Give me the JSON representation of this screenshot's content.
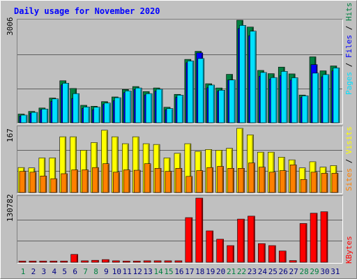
{
  "chart_data": [
    {
      "type": "bar",
      "title": "Daily usage for November 2020",
      "panel": "hits-files-pages",
      "ylabel": [
        "Pages",
        "Files",
        "Hits"
      ],
      "ymax_label": "3006",
      "ylim": [
        0,
        3006
      ],
      "categories": [
        "1",
        "2",
        "3",
        "4",
        "5",
        "6",
        "7",
        "8",
        "9",
        "10",
        "11",
        "12",
        "13",
        "14",
        "15",
        "16",
        "17",
        "18",
        "19",
        "20",
        "21",
        "22",
        "23",
        "24",
        "25",
        "26",
        "27",
        "28",
        "29",
        "30",
        "31"
      ],
      "series": [
        {
          "name": "Hits",
          "color": "#008040",
          "values": [
            255,
            333,
            433,
            725,
            1232,
            1005,
            512,
            484,
            620,
            757,
            975,
            1062,
            915,
            1021,
            455,
            833,
            1858,
            2095,
            1145,
            1020,
            1420,
            3006,
            2806,
            1535,
            1440,
            1632,
            1433,
            813,
            1933,
            1523,
            1666
          ]
        },
        {
          "name": "Files",
          "color": "#0000ff",
          "values": [
            198,
            283,
            384,
            628,
            1112,
            712,
            421,
            384,
            540,
            648,
            885,
            975,
            815,
            925,
            380,
            745,
            1760,
            2050,
            1025,
            925,
            1255,
            2765,
            2554,
            1365,
            1280,
            1380,
            1250,
            745,
            1705,
            1348,
            1520
          ]
        },
        {
          "name": "Pages",
          "color": "#00e0ff",
          "values": [
            225,
            305,
            403,
            700,
            1160,
            855,
            463,
            457,
            578,
            735,
            935,
            1020,
            855,
            983,
            418,
            810,
            1813,
            1883,
            1105,
            955,
            1255,
            2855,
            2685,
            1475,
            1325,
            1506,
            1320,
            790,
            1455,
            1413,
            1608
          ]
        }
      ]
    },
    {
      "type": "bar",
      "panel": "visits-sites",
      "ylabel": [
        "Sites",
        "Visits"
      ],
      "ymax_label": "167",
      "ylim": [
        0,
        167
      ],
      "categories": [
        "1",
        "2",
        "3",
        "4",
        "5",
        "6",
        "7",
        "8",
        "9",
        "10",
        "11",
        "12",
        "13",
        "14",
        "15",
        "16",
        "17",
        "18",
        "19",
        "20",
        "21",
        "22",
        "23",
        "24",
        "25",
        "26",
        "27",
        "28",
        "29",
        "30",
        "31"
      ],
      "series": [
        {
          "name": "Visits",
          "color": "#ffff00",
          "values": [
            65,
            64,
            90,
            90,
            145,
            145,
            110,
            130,
            162,
            145,
            127,
            145,
            127,
            125,
            90,
            102,
            127,
            107,
            112,
            110,
            115,
            167,
            150,
            105,
            105,
            92,
            85,
            64,
            80,
            66,
            70
          ]
        },
        {
          "name": "Sites",
          "color": "#ff8000",
          "values": [
            55,
            53,
            43,
            36,
            49,
            59,
            59,
            65,
            75,
            53,
            59,
            58,
            75,
            63,
            55,
            63,
            42,
            57,
            65,
            68,
            63,
            63,
            77,
            66,
            53,
            57,
            72,
            34,
            53,
            50,
            50
          ]
        }
      ]
    },
    {
      "type": "bar",
      "panel": "kbytes",
      "ylabel": "KBytes",
      "ymax_label": "130782",
      "ylim": [
        0,
        130782
      ],
      "categories": [
        "1",
        "2",
        "3",
        "4",
        "5",
        "6",
        "7",
        "8",
        "9",
        "10",
        "11",
        "12",
        "13",
        "14",
        "15",
        "16",
        "17",
        "18",
        "19",
        "20",
        "21",
        "22",
        "23",
        "24",
        "25",
        "26",
        "27",
        "28",
        "29",
        "30",
        "31"
      ],
      "series": [
        {
          "name": "KBytes",
          "color": "#ff0000",
          "values": [
            2500,
            2500,
            2500,
            2500,
            2500,
            16000,
            3000,
            4000,
            5500,
            3000,
            2500,
            2500,
            3000,
            3000,
            3000,
            3000,
            91000,
            130782,
            64000,
            47000,
            34000,
            88000,
            94000,
            38000,
            34000,
            23000,
            3500,
            79000,
            100000,
            103000,
            0
          ]
        }
      ]
    }
  ],
  "xaxis": {
    "labels": [
      "1",
      "2",
      "3",
      "4",
      "5",
      "6",
      "7",
      "8",
      "9",
      "10",
      "11",
      "12",
      "13",
      "14",
      "15",
      "16",
      "17",
      "18",
      "19",
      "20",
      "21",
      "22",
      "23",
      "24",
      "25",
      "26",
      "27",
      "28",
      "29",
      "30",
      "31"
    ],
    "weekend_days": [
      1,
      7,
      8,
      14,
      15,
      21,
      22,
      28,
      29
    ],
    "weekday_color": "#000080",
    "weekend_color": "#008040"
  },
  "colors": {
    "background": "#c0c0c0",
    "plot_background": "#c0c0c0",
    "title": "#0000ff",
    "grid": "#606060"
  }
}
